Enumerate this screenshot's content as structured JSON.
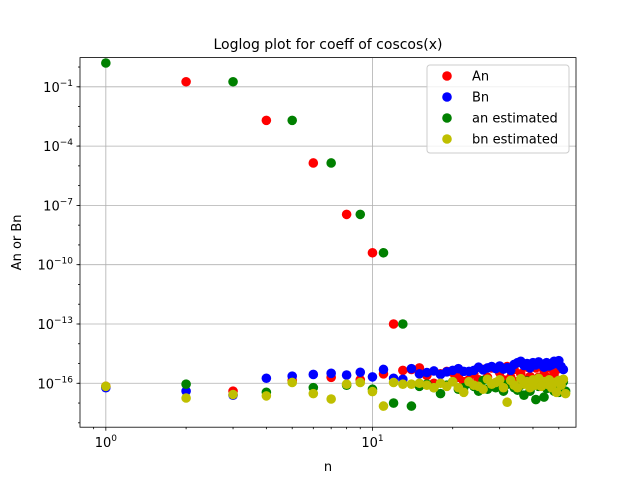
{
  "chart_data": {
    "type": "scatter",
    "title": "Loglog plot for coeff of coscos(x)",
    "xlabel": "n",
    "ylabel": "An or Bn",
    "xscale": "log",
    "yscale": "log",
    "xlim": [
      0.8,
      58
    ],
    "ylim": [
      6e-19,
      3
    ],
    "grid": true,
    "legend_position": "top-right",
    "x_ticks": [
      {
        "value": 1,
        "base": "10",
        "exp": "0"
      },
      {
        "value": 10,
        "base": "10",
        "exp": "1"
      }
    ],
    "y_ticks": [
      {
        "value": 1e-16,
        "base": "10",
        "exp": "−16"
      },
      {
        "value": 1e-13,
        "base": "10",
        "exp": "−13"
      },
      {
        "value": 1e-10,
        "base": "10",
        "exp": "−10"
      },
      {
        "value": 1e-07,
        "base": "10",
        "exp": "−7"
      },
      {
        "value": 0.0001,
        "base": "10",
        "exp": "−4"
      },
      {
        "value": 0.1,
        "base": "10",
        "exp": "−1"
      }
    ],
    "series": [
      {
        "name": "An",
        "color": "#ff0000",
        "points": [
          [
            1,
            7e-17
          ],
          [
            2,
            0.18
          ],
          [
            3,
            4e-17
          ],
          [
            4,
            0.002
          ],
          [
            5,
            1.4e-16
          ],
          [
            6,
            1.4e-05
          ],
          [
            7,
            2e-16
          ],
          [
            8,
            3.5e-08
          ],
          [
            9,
            1.5e-16
          ],
          [
            10,
            4e-10
          ],
          [
            11,
            3e-16
          ],
          [
            12,
            1e-13
          ],
          [
            13,
            4.5e-16
          ],
          [
            14,
            5e-16
          ],
          [
            15,
            6e-16
          ],
          [
            16,
            2.5e-16
          ],
          [
            17,
            1e-16
          ],
          [
            18,
            3e-16
          ],
          [
            19,
            4e-16
          ],
          [
            20,
            3.5e-16
          ],
          [
            21,
            2e-16
          ],
          [
            22,
            1.2e-16
          ],
          [
            23,
            1.5e-16
          ],
          [
            24,
            3e-16
          ],
          [
            25,
            1.5e-16
          ],
          [
            26,
            5e-16
          ],
          [
            27,
            2e-16
          ],
          [
            28,
            6e-16
          ],
          [
            29,
            1e-16
          ],
          [
            30,
            3.5e-16
          ],
          [
            31,
            1.5e-16
          ],
          [
            32,
            7e-16
          ],
          [
            33,
            2e-16
          ],
          [
            34,
            5e-16
          ],
          [
            35,
            1.2e-16
          ],
          [
            36,
            3e-16
          ],
          [
            37,
            1.5e-16
          ],
          [
            38,
            6.5e-16
          ],
          [
            39,
            2.2e-16
          ],
          [
            40,
            1.6e-16
          ],
          [
            41,
            6e-16
          ],
          [
            42,
            2e-16
          ],
          [
            43,
            1.3e-16
          ],
          [
            44,
            4.5e-16
          ],
          [
            45,
            2e-16
          ],
          [
            46,
            6e-16
          ],
          [
            47,
            1e-16
          ],
          [
            48,
            3e-16
          ],
          [
            49,
            1.5e-16
          ],
          [
            50,
            5.5e-16
          ]
        ]
      },
      {
        "name": "Bn",
        "color": "#0000ff",
        "points": [
          [
            1,
            6e-17
          ],
          [
            2,
            4e-17
          ],
          [
            3,
            2.5e-17
          ],
          [
            4,
            1.8e-16
          ],
          [
            5,
            2.3e-16
          ],
          [
            6,
            2.8e-16
          ],
          [
            7,
            3.2e-16
          ],
          [
            8,
            2.6e-16
          ],
          [
            9,
            3.6e-16
          ],
          [
            10,
            2.1e-16
          ],
          [
            11,
            5e-16
          ],
          [
            12,
            1.8e-16
          ],
          [
            13,
            1.6e-16
          ],
          [
            14,
            5.5e-16
          ],
          [
            15,
            3e-16
          ],
          [
            16,
            3.5e-16
          ],
          [
            17,
            4.2e-16
          ],
          [
            18,
            2.8e-16
          ],
          [
            19,
            3.8e-16
          ],
          [
            20,
            4.5e-16
          ],
          [
            21,
            5.5e-16
          ],
          [
            22,
            4e-16
          ],
          [
            23,
            4e-16
          ],
          [
            24,
            4.5e-16
          ],
          [
            25,
            6.5e-16
          ],
          [
            26,
            4.8e-16
          ],
          [
            27,
            6e-16
          ],
          [
            28,
            7e-16
          ],
          [
            29,
            5.5e-16
          ],
          [
            30,
            7.5e-16
          ],
          [
            31,
            5.2e-16
          ],
          [
            32,
            6.2e-16
          ],
          [
            33,
            4.5e-16
          ],
          [
            34,
            9e-16
          ],
          [
            35,
            1.1e-15
          ],
          [
            36,
            1.3e-15
          ],
          [
            37,
            8e-16
          ],
          [
            38,
            1e-15
          ],
          [
            39,
            6e-16
          ],
          [
            40,
            1.1e-15
          ],
          [
            41,
            8.5e-16
          ],
          [
            42,
            1.2e-15
          ],
          [
            43,
            9e-16
          ],
          [
            44,
            6.5e-16
          ],
          [
            45,
            1.1e-15
          ],
          [
            46,
            7.5e-16
          ],
          [
            47,
            8.5e-16
          ],
          [
            48,
            1.3e-15
          ],
          [
            49,
            1e-15
          ],
          [
            50,
            1.4e-15
          ],
          [
            51,
            7e-16
          ],
          [
            52,
            5e-16
          ]
        ]
      },
      {
        "name": "an estimated",
        "color": "#008000",
        "points": [
          [
            1,
            1.6
          ],
          [
            2,
            9e-17
          ],
          [
            3,
            0.18
          ],
          [
            4,
            3.5e-17
          ],
          [
            5,
            0.002
          ],
          [
            6,
            6e-17
          ],
          [
            7,
            1.4e-05
          ],
          [
            8,
            8e-17
          ],
          [
            9,
            3.5e-08
          ],
          [
            10,
            5e-17
          ],
          [
            11,
            4e-10
          ],
          [
            12,
            1e-17
          ],
          [
            13,
            1e-13
          ],
          [
            14,
            7e-18
          ],
          [
            15,
            7e-17
          ],
          [
            16,
            9e-17
          ],
          [
            17,
            6e-17
          ],
          [
            18,
            3e-17
          ],
          [
            19,
            8e-17
          ],
          [
            20,
            1.2e-16
          ],
          [
            21,
            5e-17
          ],
          [
            22,
            6e-17
          ],
          [
            23,
            1e-16
          ],
          [
            24,
            7e-17
          ],
          [
            25,
            4e-17
          ],
          [
            26,
            1.4e-16
          ],
          [
            27,
            5e-17
          ],
          [
            28,
            7e-17
          ],
          [
            29,
            6e-17
          ],
          [
            30,
            1.1e-16
          ],
          [
            31,
            4e-17
          ],
          [
            32,
            9e-17
          ],
          [
            33,
            1.1e-16
          ],
          [
            34,
            6e-17
          ],
          [
            35,
            4.5e-17
          ],
          [
            36,
            8e-17
          ],
          [
            37,
            2.5e-17
          ],
          [
            38,
            1.3e-16
          ],
          [
            39,
            4e-17
          ],
          [
            40,
            9e-17
          ],
          [
            41,
            1.5e-17
          ],
          [
            42,
            7e-17
          ],
          [
            43,
            1.1e-16
          ],
          [
            44,
            2e-17
          ],
          [
            45,
            5.5e-17
          ],
          [
            46,
            1e-16
          ],
          [
            47,
            6e-17
          ],
          [
            48,
            4e-17
          ],
          [
            49,
            9e-17
          ],
          [
            50,
            3.5e-17
          ],
          [
            51,
            6e-17
          ],
          [
            52,
            1.2e-16
          ],
          [
            53,
            4e-17
          ]
        ]
      },
      {
        "name": "bn estimated",
        "color": "#bfbf00",
        "points": [
          [
            1,
            7e-17
          ],
          [
            2,
            1.8e-17
          ],
          [
            3,
            2.7e-17
          ],
          [
            4,
            2.3e-17
          ],
          [
            5,
            1.1e-16
          ],
          [
            6,
            3e-17
          ],
          [
            7,
            1.6e-17
          ],
          [
            8,
            9e-17
          ],
          [
            9,
            1.1e-16
          ],
          [
            10,
            3.8e-17
          ],
          [
            11,
            7e-18
          ],
          [
            12,
            1.1e-16
          ],
          [
            13,
            9e-17
          ],
          [
            14,
            9e-17
          ],
          [
            15,
            1e-16
          ],
          [
            16,
            8e-17
          ],
          [
            17,
            6e-17
          ],
          [
            18,
            1e-16
          ],
          [
            19,
            7e-17
          ],
          [
            20,
            1.2e-16
          ],
          [
            21,
            6e-17
          ],
          [
            22,
            3.5e-17
          ],
          [
            23,
            1.2e-16
          ],
          [
            24,
            8e-17
          ],
          [
            25,
            7e-17
          ],
          [
            26,
            5e-17
          ],
          [
            27,
            1.6e-16
          ],
          [
            28,
            9e-17
          ],
          [
            29,
            1.1e-16
          ],
          [
            30,
            1.5e-16
          ],
          [
            31,
            6e-17
          ],
          [
            32,
            1.1e-17
          ],
          [
            33,
            1.4e-16
          ],
          [
            34,
            8e-17
          ],
          [
            35,
            6e-17
          ],
          [
            36,
            1.7e-16
          ],
          [
            37,
            9e-17
          ],
          [
            38,
            1.2e-16
          ],
          [
            39,
            6e-17
          ],
          [
            40,
            1.5e-16
          ],
          [
            41,
            8e-17
          ],
          [
            42,
            1.8e-16
          ],
          [
            43,
            7e-17
          ],
          [
            44,
            1.2e-16
          ],
          [
            45,
            9e-17
          ],
          [
            46,
            1.5e-16
          ],
          [
            47,
            6e-17
          ],
          [
            48,
            1.1e-16
          ],
          [
            49,
            3.5e-17
          ],
          [
            50,
            1.4e-16
          ],
          [
            51,
            8e-17
          ],
          [
            52,
            1.6e-16
          ],
          [
            53,
            3e-17
          ]
        ]
      }
    ]
  }
}
